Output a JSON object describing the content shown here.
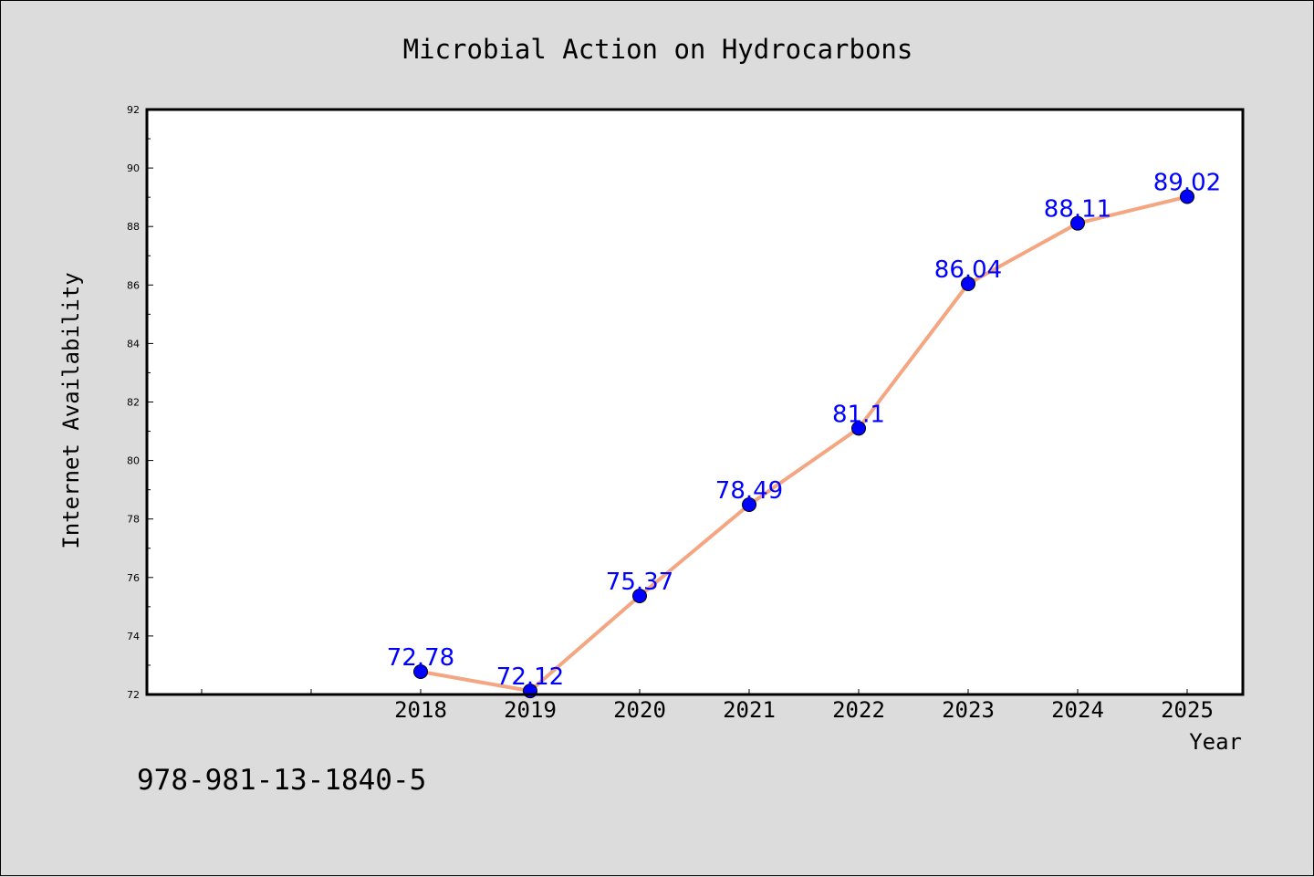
{
  "footer_code": "978-981-13-1840-5",
  "chart_data": {
    "type": "line",
    "title": "Microbial Action on Hydrocarbons",
    "xlabel": "Year",
    "ylabel": "Internet Availability",
    "x": [
      "2018",
      "2019",
      "2020",
      "2021",
      "2022",
      "2023",
      "2024",
      "2025"
    ],
    "data_labels": [
      "72.78",
      "72.12",
      "75.37",
      "78.49",
      "81.1",
      "86.04",
      "88.11",
      "89.02"
    ],
    "series": [
      {
        "values": [
          72.78,
          72.12,
          75.37,
          78.49,
          81.1,
          86.04,
          88.11,
          89.02
        ]
      }
    ],
    "ylim": [
      72,
      92
    ],
    "yticks": [
      "72",
      "74",
      "76",
      "78",
      "80",
      "82",
      "84",
      "86",
      "88",
      "90",
      "92"
    ],
    "grid": false,
    "legend": "none",
    "line_color": "#f4a582",
    "marker_color": "#0000ff",
    "label_color": "#0000ff",
    "plot_background": "#ffffff",
    "figure_background": "#dcdcdc"
  }
}
